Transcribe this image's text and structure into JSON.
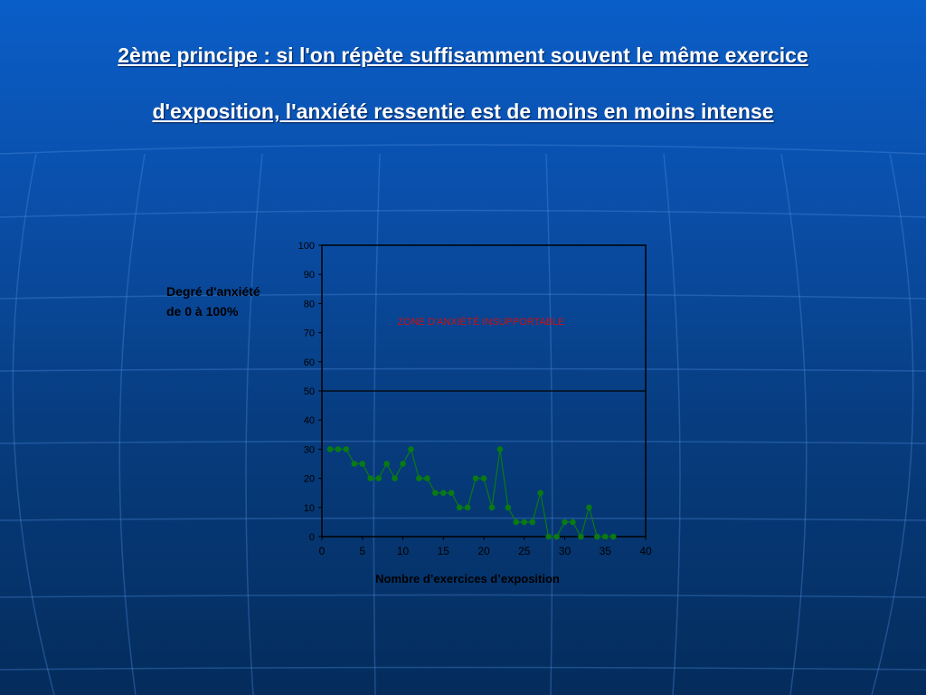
{
  "slide": {
    "title_line_1": "2ème principe : si l'on répète suffisamment souvent le même exercice",
    "title_line_2": "d'exposition, l'anxiété ressentie est de moins en moins intense",
    "colors": {
      "series": "#0a7a14",
      "threshold": "#000000",
      "zone_text": "#cc1010"
    }
  },
  "chart_data": {
    "type": "line",
    "title": "",
    "ylabel_line_1": "Degré d'anxiété",
    "ylabel_line_2": "de 0 à 100%",
    "xlabel": "Nombre d’exercices d’exposition",
    "xlim": [
      0,
      40
    ],
    "ylim": [
      0,
      100
    ],
    "xticks": [
      0,
      5,
      10,
      15,
      20,
      25,
      30,
      35,
      40
    ],
    "yticks": [
      0,
      10,
      20,
      30,
      40,
      50,
      60,
      70,
      80,
      90,
      100
    ],
    "grid": false,
    "threshold": 50,
    "zone_label": "ZONE D'ANXIÉTÉ INSUPPORTABLE",
    "series": [
      {
        "x": [
          1,
          2,
          3,
          4,
          5,
          6,
          7,
          8,
          9,
          10,
          11,
          12,
          13,
          14,
          15,
          16,
          17,
          18,
          19,
          20,
          21,
          22,
          23,
          24,
          25,
          26,
          27,
          28,
          29,
          30,
          31,
          32,
          33,
          34,
          35,
          36
        ],
        "y": [
          30,
          30,
          30,
          25,
          25,
          20,
          20,
          25,
          20,
          25,
          30,
          20,
          20,
          15,
          15,
          15,
          10,
          10,
          20,
          20,
          10,
          30,
          10,
          5,
          5,
          5,
          15,
          0,
          0,
          5,
          5,
          0,
          10,
          0,
          0,
          0
        ]
      }
    ]
  }
}
